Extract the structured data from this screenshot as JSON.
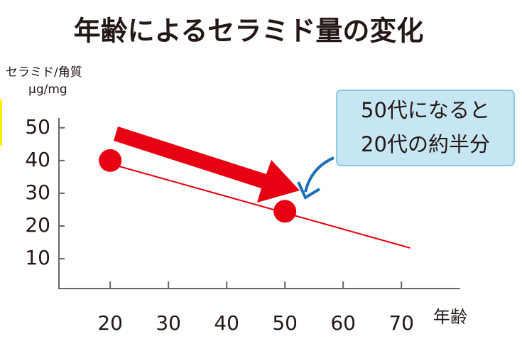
{
  "chart_data": {
    "type": "scatter",
    "title": "年齢によるセラミド量の変化",
    "y_label_lines": [
      "セラミド/角質",
      "μg/mg"
    ],
    "x_label": "年齢",
    "annotation_lines": [
      "50代になると",
      "20代の約半分"
    ],
    "x": [
      20,
      50
    ],
    "values": [
      40,
      24.5
    ],
    "color": "#e60012",
    "trend": {
      "x": [
        20,
        71.5
      ],
      "values": [
        39,
        13.3
      ],
      "color": "#e60012"
    },
    "xlim": [
      11.2,
      80.1
    ],
    "ylim": [
      0.9,
      53
    ],
    "xticks": [
      20,
      30,
      40,
      50,
      60,
      70
    ],
    "yticks": [
      10,
      20,
      30,
      40,
      50
    ]
  }
}
